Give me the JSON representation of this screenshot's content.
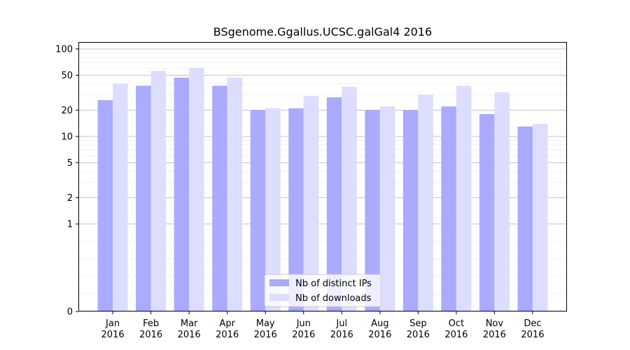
{
  "chart_data": {
    "type": "bar",
    "title": "BSgenome.Ggallus.UCSC.galGal4 2016",
    "xlabel": "",
    "ylabel": "",
    "yscale": "symlog",
    "ylim": [
      0,
      120
    ],
    "grid": true,
    "legend_position": "bottom-center",
    "categories": [
      [
        "Jan",
        "2016"
      ],
      [
        "Feb",
        "2016"
      ],
      [
        "Mar",
        "2016"
      ],
      [
        "Apr",
        "2016"
      ],
      [
        "May",
        "2016"
      ],
      [
        "Jun",
        "2016"
      ],
      [
        "Jul",
        "2016"
      ],
      [
        "Aug",
        "2016"
      ],
      [
        "Sep",
        "2016"
      ],
      [
        "Oct",
        "2016"
      ],
      [
        "Nov",
        "2016"
      ],
      [
        "Dec",
        "2016"
      ]
    ],
    "y_ticks": [
      0,
      1,
      2,
      5,
      10,
      20,
      50,
      100
    ],
    "series": [
      {
        "name": "Nb of distinct IPs",
        "color": "#aaaaff",
        "values": [
          26,
          38,
          47,
          38,
          20,
          21,
          28,
          20,
          20,
          22,
          18,
          13
        ]
      },
      {
        "name": "Nb of downloads",
        "color": "#ddddff",
        "values": [
          40,
          56,
          61,
          47,
          21,
          29,
          37,
          22,
          30,
          38,
          32,
          14
        ]
      }
    ]
  }
}
